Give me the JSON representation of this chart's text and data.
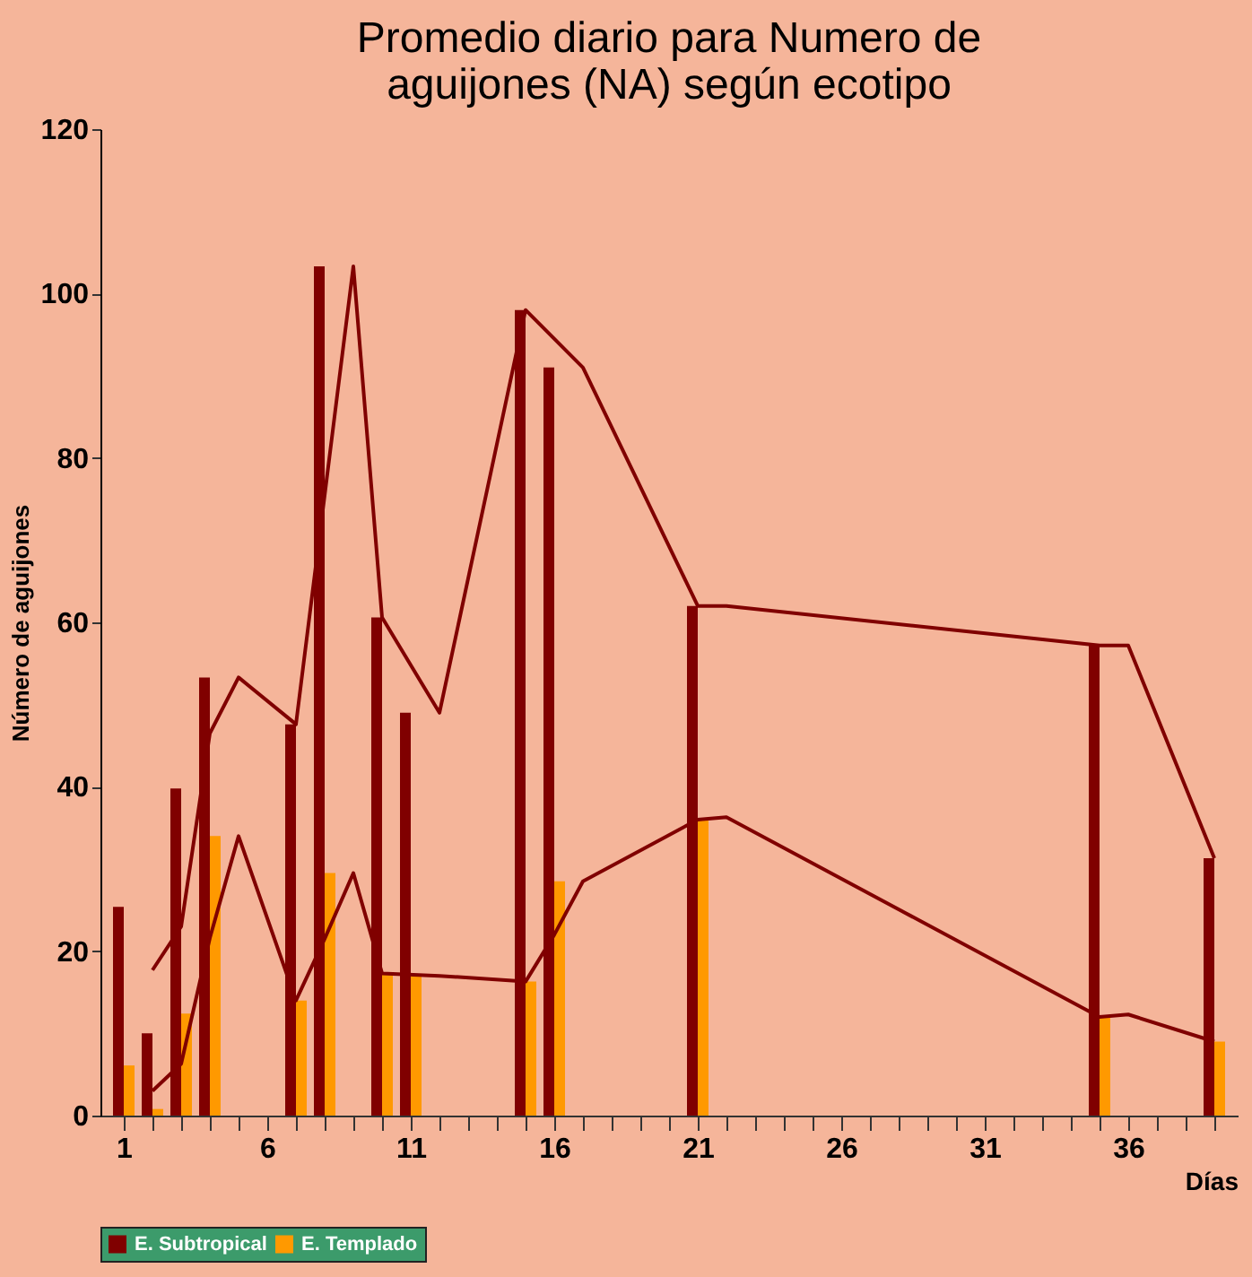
{
  "chart_data": {
    "type": "bar",
    "title": [
      "Promedio diario para Numero de",
      "aguijones (NA) según ecotipo"
    ],
    "xlabel": "Días",
    "ylabel": "Número de aguijones",
    "xlim": [
      0.5,
      39.5
    ],
    "ylim": [
      0,
      120
    ],
    "yticks": [
      0,
      20,
      40,
      60,
      80,
      100,
      120
    ],
    "xticks": [
      1,
      {
        "value": 2,
        "label": null
      },
      {
        "value": 3,
        "label": null
      },
      {
        "value": 4,
        "label": null
      },
      {
        "value": 5,
        "label": null
      },
      6,
      {
        "value": 7,
        "label": null
      },
      {
        "value": 8,
        "label": null
      },
      {
        "value": 9,
        "label": null
      },
      {
        "value": 10,
        "label": null
      },
      11,
      {
        "value": 12,
        "label": null
      },
      {
        "value": 13,
        "label": null
      },
      {
        "value": 14,
        "label": null
      },
      {
        "value": 15,
        "label": null
      },
      16,
      {
        "value": 17,
        "label": null
      },
      {
        "value": 18,
        "label": null
      },
      {
        "value": 19,
        "label": null
      },
      {
        "value": 20,
        "label": null
      },
      21,
      {
        "value": 22,
        "label": null
      },
      {
        "value": 23,
        "label": null
      },
      {
        "value": 24,
        "label": null
      },
      {
        "value": 25,
        "label": null
      },
      26,
      {
        "value": 27,
        "label": null
      },
      {
        "value": 28,
        "label": null
      },
      {
        "value": 29,
        "label": null
      },
      {
        "value": 30,
        "label": null
      },
      31,
      {
        "value": 32,
        "label": null
      },
      {
        "value": 33,
        "label": null
      },
      {
        "value": 34,
        "label": null
      },
      {
        "value": 35,
        "label": null
      },
      36,
      {
        "value": 37,
        "label": null
      },
      {
        "value": 38,
        "label": null
      },
      {
        "value": 39,
        "label": null
      }
    ],
    "grid": false,
    "legend": "bottom",
    "series": [
      {
        "name": "E. Subtropical",
        "color": "#800000",
        "x": [
          1,
          2,
          3,
          4,
          7,
          8,
          10,
          11,
          15,
          16,
          21,
          35,
          39
        ],
        "values": [
          25.4,
          10,
          39.8,
          53.3,
          47.6,
          103.3,
          60.6,
          49,
          98,
          91,
          62,
          57.2,
          31.3
        ]
      },
      {
        "name": "E. Templado",
        "color": "#ff9900",
        "x": [
          1,
          2,
          3,
          4,
          7,
          8,
          10,
          11,
          15,
          16,
          21,
          35,
          39
        ],
        "values": [
          6.1,
          0.8,
          12.4,
          34,
          14,
          29.5,
          17.3,
          17,
          16.3,
          28.5,
          36,
          12,
          9
        ]
      },
      {
        "type": "line",
        "color": "#800000",
        "x": [
          2,
          3,
          4,
          5,
          7,
          9,
          10,
          12,
          15,
          17,
          21,
          22,
          35,
          36,
          39
        ],
        "values": [
          17.7,
          23,
          46.5,
          53.3,
          47.6,
          103.3,
          60.6,
          49,
          98,
          91,
          62,
          62,
          57.2,
          57.2,
          31.3
        ]
      },
      {
        "type": "line",
        "color": "#800000",
        "x": [
          2,
          3,
          4,
          5,
          7,
          8,
          9,
          10,
          12,
          15,
          16,
          17,
          21,
          22,
          35,
          36,
          39
        ],
        "values": [
          3,
          6.3,
          21.6,
          34,
          14,
          21.5,
          29.5,
          17.3,
          17,
          16.3,
          22,
          28.5,
          36,
          36.3,
          12,
          12.3,
          9
        ]
      }
    ]
  }
}
